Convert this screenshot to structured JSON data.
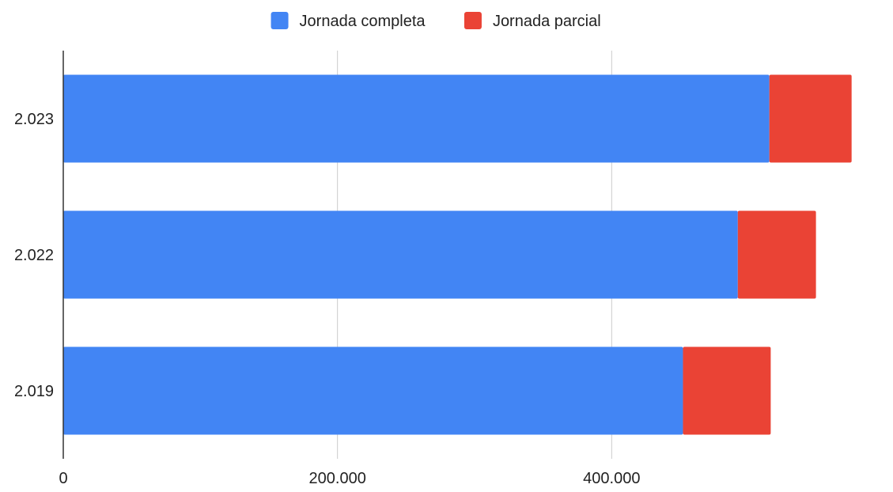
{
  "chart_data": {
    "type": "bar",
    "orientation": "horizontal",
    "stacked": true,
    "title": "",
    "xlabel": "",
    "ylabel": "",
    "categories": [
      "2.023",
      "2.022",
      "2.019"
    ],
    "series": [
      {
        "name": "Jornada completa",
        "color": "#4285f4",
        "values": [
          515000,
          492000,
          452000
        ]
      },
      {
        "name": "Jornada parcial",
        "color": "#ea4335",
        "values": [
          60000,
          57000,
          64000
        ]
      }
    ],
    "xlim": [
      0,
      600000
    ],
    "x_ticks": [
      {
        "value": 0,
        "label": "0"
      },
      {
        "value": 200000,
        "label": "200.000"
      },
      {
        "value": 400000,
        "label": "400.000"
      }
    ],
    "grid": "vertical",
    "legend_position": "top-center"
  }
}
